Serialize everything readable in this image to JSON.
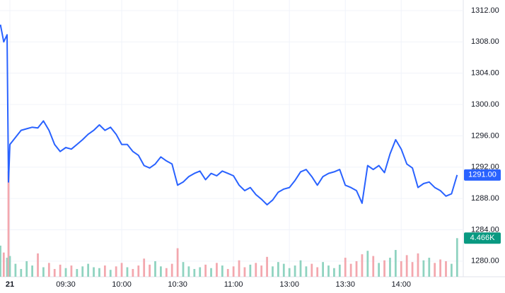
{
  "chart_data": {
    "type": "line",
    "x": [
      -1.7,
      -1.1,
      -0.5,
      -0.25,
      0,
      1,
      2,
      3,
      4,
      5,
      6,
      7,
      8,
      9,
      10,
      11,
      12,
      13,
      14,
      15,
      16,
      17,
      18,
      19,
      20,
      21,
      22,
      23,
      24,
      25,
      26,
      27,
      28,
      29,
      30,
      31,
      32,
      33,
      34,
      35,
      36,
      37,
      38,
      39,
      40,
      41,
      42,
      43,
      44,
      45,
      46,
      47,
      48,
      49,
      50,
      51,
      52,
      53,
      54,
      55,
      56,
      57,
      58,
      59,
      60,
      61,
      62,
      63,
      64,
      65,
      66,
      67,
      68,
      69,
      70,
      71,
      72,
      73,
      74,
      75,
      76,
      77,
      78,
      79,
      80
    ],
    "values": [
      1310.2,
      1308.0,
      1308.9,
      1290.1,
      1294.9,
      1295.8,
      1296.7,
      1296.9,
      1297.1,
      1297.0,
      1297.9,
      1296.7,
      1294.9,
      1294.0,
      1294.5,
      1294.3,
      1294.9,
      1295.5,
      1296.2,
      1296.7,
      1297.4,
      1296.7,
      1297.1,
      1296.2,
      1294.9,
      1294.9,
      1294.0,
      1293.5,
      1292.2,
      1291.9,
      1292.4,
      1293.3,
      1292.8,
      1292.4,
      1289.7,
      1290.1,
      1290.8,
      1291.2,
      1291.5,
      1290.4,
      1291.2,
      1290.9,
      1291.5,
      1291.2,
      1290.9,
      1289.7,
      1289.0,
      1289.4,
      1288.5,
      1287.9,
      1287.2,
      1287.8,
      1288.8,
      1289.2,
      1289.4,
      1290.3,
      1291.4,
      1291.7,
      1290.8,
      1289.7,
      1290.8,
      1291.2,
      1291.4,
      1291.7,
      1289.7,
      1289.4,
      1289.0,
      1287.4,
      1292.2,
      1291.7,
      1292.2,
      1291.3,
      1293.7,
      1295.5,
      1294.3,
      1292.4,
      1291.9,
      1289.4,
      1289.9,
      1290.1,
      1289.4,
      1289.0,
      1288.3,
      1288.6,
      1291.0
    ],
    "last_value_label": "1291.00",
    "color": "#2962ff",
    "xlim": [
      -1.77,
      81.1
    ],
    "xticks": [
      {
        "value": 0,
        "label": "21"
      },
      {
        "value": 10,
        "label": "09:30"
      },
      {
        "value": 20,
        "label": "10:00"
      },
      {
        "value": 30,
        "label": "10:30"
      },
      {
        "value": 40,
        "label": "11:00"
      },
      {
        "value": 50,
        "label": "13:00"
      },
      {
        "value": 60,
        "label": "13:30"
      },
      {
        "value": 70,
        "label": "14:00"
      }
    ],
    "ylim": [
      1278,
      1313.35
    ],
    "yticks": [
      {
        "value": 1280,
        "label": "1280.00"
      },
      {
        "value": 1284,
        "label": "1284.00"
      },
      {
        "value": 1288,
        "label": "1288.00"
      },
      {
        "value": 1292,
        "label": "1292.00"
      },
      {
        "value": 1296,
        "label": "1296.00"
      },
      {
        "value": 1300,
        "label": "1300.00"
      },
      {
        "value": 1304,
        "label": "1304.00"
      },
      {
        "value": 1308,
        "label": "1308.00"
      },
      {
        "value": 1312,
        "label": "1312.00"
      }
    ],
    "grid": true,
    "volume": {
      "values": [
        3600,
        2800,
        2200,
        12200,
        2400,
        1500,
        900,
        1800,
        1300,
        2700,
        1100,
        1600,
        900,
        1400,
        1000,
        1300,
        900,
        1200,
        1500,
        1100,
        1000,
        1300,
        800,
        1200,
        1600,
        1100,
        900,
        1300,
        2100,
        1400,
        1800,
        1200,
        1000,
        1500,
        3300,
        1700,
        1200,
        900,
        1100,
        1400,
        1000,
        1600,
        1300,
        900,
        1200,
        1900,
        1100,
        1400,
        1600,
        1300,
        2300,
        1200,
        1700,
        1500,
        1000,
        1300,
        1900,
        1200,
        1500,
        1100,
        1700,
        1300,
        1000,
        1400,
        2200,
        1500,
        1800,
        2600,
        3000,
        2400,
        1600,
        1900,
        2200,
        3100,
        1800,
        2500,
        1700,
        2700,
        1900,
        2200,
        1600,
        2000,
        1800,
        1500,
        4466
      ],
      "last_value_label": "4.466K",
      "ylim": [
        0,
        32000
      ],
      "color_up": "#8fd3c0",
      "color_down": "#f3a7ae",
      "label_color": "#089981"
    }
  }
}
